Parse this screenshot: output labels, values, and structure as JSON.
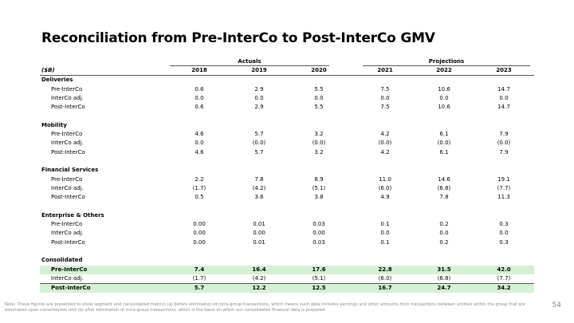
{
  "title": "Reconciliation from Pre-InterCo to Post-InterCo GMV",
  "group_headers": {
    "actuals": "Actuals",
    "projections": "Projections"
  },
  "unit_label": "($B)",
  "years": [
    "2018",
    "2019",
    "2020",
    "2021",
    "2022",
    "2023"
  ],
  "sections": [
    {
      "name": "Deliveries",
      "rows": [
        {
          "label": "Pre-InterCo",
          "values": [
            "0.6",
            "2.9",
            "5.5",
            "7.5",
            "10.6",
            "14.7"
          ]
        },
        {
          "label": "InterCo adj.",
          "values": [
            "0.0",
            "0.0",
            "0.0",
            "0.0",
            "0.0",
            "0.0"
          ]
        },
        {
          "label": "Post-InterCo",
          "values": [
            "0.6",
            "2.9",
            "5.5",
            "7.5",
            "10.6",
            "14.7"
          ]
        }
      ]
    },
    {
      "name": "Mobility",
      "rows": [
        {
          "label": "Pre-InterCo",
          "values": [
            "4.6",
            "5.7",
            "3.2",
            "4.2",
            "6.1",
            "7.9"
          ]
        },
        {
          "label": "InterCo adj.",
          "values": [
            "0.0",
            "(0.0)",
            "(0.0)",
            "(0.0)",
            "(0.0)",
            "(0.0)"
          ]
        },
        {
          "label": "Post-InterCo",
          "values": [
            "4.6",
            "5.7",
            "3.2",
            "4.2",
            "6.1",
            "7.9"
          ]
        }
      ]
    },
    {
      "name": "Financial Services",
      "rows": [
        {
          "label": "Pre-InterCo",
          "values": [
            "2.2",
            "7.8",
            "8.9",
            "11.0",
            "14.6",
            "19.1"
          ]
        },
        {
          "label": "InterCo adj.",
          "values": [
            "(1.7)",
            "(4.2)",
            "(5.1)",
            "(6.0)",
            "(6.8)",
            "(7.7)"
          ]
        },
        {
          "label": "Post-InterCo",
          "values": [
            "0.5",
            "3.6",
            "3.8",
            "4.9",
            "7.8",
            "11.3"
          ]
        }
      ]
    },
    {
      "name": "Enterprise & Others",
      "rows": [
        {
          "label": "Pre-InterCo",
          "values": [
            "0.00",
            "0.01",
            "0.03",
            "0.1",
            "0.2",
            "0.3"
          ]
        },
        {
          "label": "InterCo adj.",
          "values": [
            "0.00",
            "0.00",
            "0.00",
            "0.0",
            "0.0",
            "0.0"
          ]
        },
        {
          "label": "Post-InterCo",
          "values": [
            "0.00",
            "0.01",
            "0.03",
            "0.1",
            "0.2",
            "0.3"
          ]
        }
      ]
    },
    {
      "name": "Consolidated",
      "rows": [
        {
          "label": "Pre-InterCo",
          "values": [
            "7.4",
            "16.4",
            "17.6",
            "22.8",
            "31.5",
            "42.0"
          ]
        },
        {
          "label": "InterCo adj.",
          "values": [
            "(1.7)",
            "(4.2)",
            "(5.1)",
            "(6.0)",
            "(6.8)",
            "(7.7)"
          ]
        },
        {
          "label": "Post-InterCo",
          "values": [
            "5.7",
            "12.2",
            "12.5",
            "16.7",
            "24.7",
            "34.2"
          ]
        }
      ]
    }
  ],
  "highlight_color": "#d4f1d4",
  "footnote": "Note: These figures are presented to show segment and consolidated metrics (a) before elimination of intra-group transactions, which means such data includes earnings and other amounts from transactions between entities within the group that are eliminated upon consolidation and (b) after elimination of intra-group transactions, which is the basis on which our consolidated financial data is prepared.",
  "page_number": "54"
}
